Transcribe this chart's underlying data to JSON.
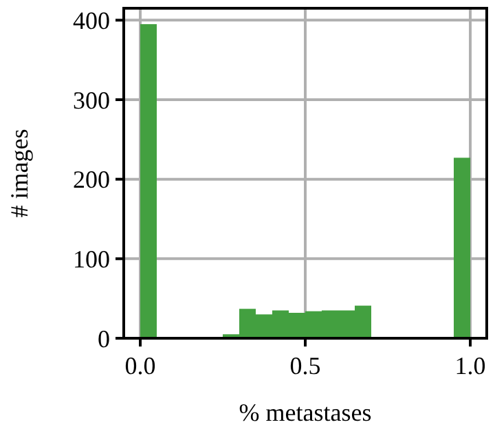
{
  "chart_data": {
    "type": "histogram",
    "xlabel": "% metastases",
    "ylabel": "# images",
    "bins": [
      0,
      0.05,
      0.1,
      0.15,
      0.2,
      0.25,
      0.3,
      0.35,
      0.4,
      0.45,
      0.5,
      0.55,
      0.6,
      0.65,
      0.7,
      0.75,
      0.8,
      0.85,
      0.9,
      0.95,
      1
    ],
    "values": [
      395,
      0,
      0,
      0,
      0,
      5,
      37,
      30,
      35,
      32,
      34,
      35,
      35,
      41,
      0,
      0,
      0,
      0,
      0,
      227
    ],
    "color": "#43a040",
    "xlim": [
      -0.05,
      1.05
    ],
    "ylim": [
      0,
      415
    ],
    "xticks": [
      {
        "value": 0,
        "label": "0.0"
      },
      {
        "value": 0.5,
        "label": "0.5"
      },
      {
        "value": 1,
        "label": "1.0"
      }
    ],
    "yticks": [
      0,
      100,
      200,
      300,
      400
    ],
    "grid": true
  }
}
